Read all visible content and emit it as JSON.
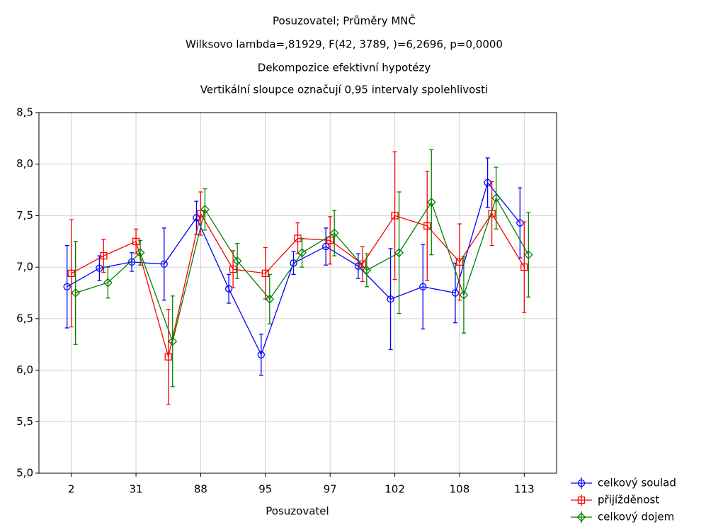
{
  "chart_data": {
    "type": "line",
    "title": "Posuzovatel; Průměry MNČ",
    "subtitles": [
      "Wilksovo lambda=,81929, F(42, 3789, )=6,2696, p=0,0000",
      "Dekompozice efektivní hypotézy",
      "Vertikální sloupce označují 0,95 intervaly spolehlivosti"
    ],
    "x_label": "Posuzovatel",
    "categories": [
      "2",
      null,
      "31",
      null,
      "88",
      null,
      "95",
      null,
      "97",
      null,
      "102",
      null,
      "108",
      null,
      "113"
    ],
    "ylim": [
      5.0,
      8.5
    ],
    "yticks": [
      {
        "value": 5.0,
        "label": "5,0"
      },
      {
        "value": 5.5,
        "label": "5,5"
      },
      {
        "value": 6.0,
        "label": "6,0"
      },
      {
        "value": 6.5,
        "label": "6,5"
      },
      {
        "value": 7.0,
        "label": "7,0"
      },
      {
        "value": 7.5,
        "label": "7,5"
      },
      {
        "value": 8.0,
        "label": "8,0"
      },
      {
        "value": 8.5,
        "label": "8,5"
      }
    ],
    "grid": true,
    "legend": "outside-bottom-right",
    "series": [
      {
        "name": "celkový soulad",
        "color": "#0000ff",
        "marker": "circle",
        "values": [
          6.81,
          6.99,
          7.05,
          7.03,
          7.48,
          6.79,
          6.15,
          7.04,
          7.2,
          7.01,
          6.69,
          6.81,
          6.75,
          7.82,
          7.43
        ],
        "errors": [
          0.4,
          0.12,
          0.09,
          0.35,
          0.16,
          0.14,
          0.2,
          0.11,
          0.18,
          0.12,
          0.49,
          0.41,
          0.29,
          0.24,
          0.34
        ]
      },
      {
        "name": "přijížděnost",
        "color": "#ff0000",
        "marker": "square",
        "values": [
          6.94,
          7.11,
          7.25,
          6.13,
          7.52,
          6.98,
          6.94,
          7.28,
          7.26,
          7.03,
          7.5,
          7.4,
          7.05,
          7.52,
          7.0
        ],
        "errors": [
          0.52,
          0.16,
          0.12,
          0.46,
          0.21,
          0.18,
          0.25,
          0.15,
          0.23,
          0.17,
          0.62,
          0.53,
          0.37,
          0.31,
          0.44
        ]
      },
      {
        "name": "celkový dojem",
        "color": "#008000",
        "marker": "diamond",
        "values": [
          6.75,
          6.85,
          7.14,
          6.28,
          7.56,
          7.06,
          6.69,
          7.14,
          7.33,
          6.97,
          7.14,
          7.63,
          6.73,
          7.67,
          7.12
        ],
        "errors": [
          0.5,
          0.15,
          0.12,
          0.44,
          0.2,
          0.17,
          0.24,
          0.14,
          0.22,
          0.16,
          0.59,
          0.51,
          0.37,
          0.3,
          0.41
        ]
      }
    ]
  }
}
